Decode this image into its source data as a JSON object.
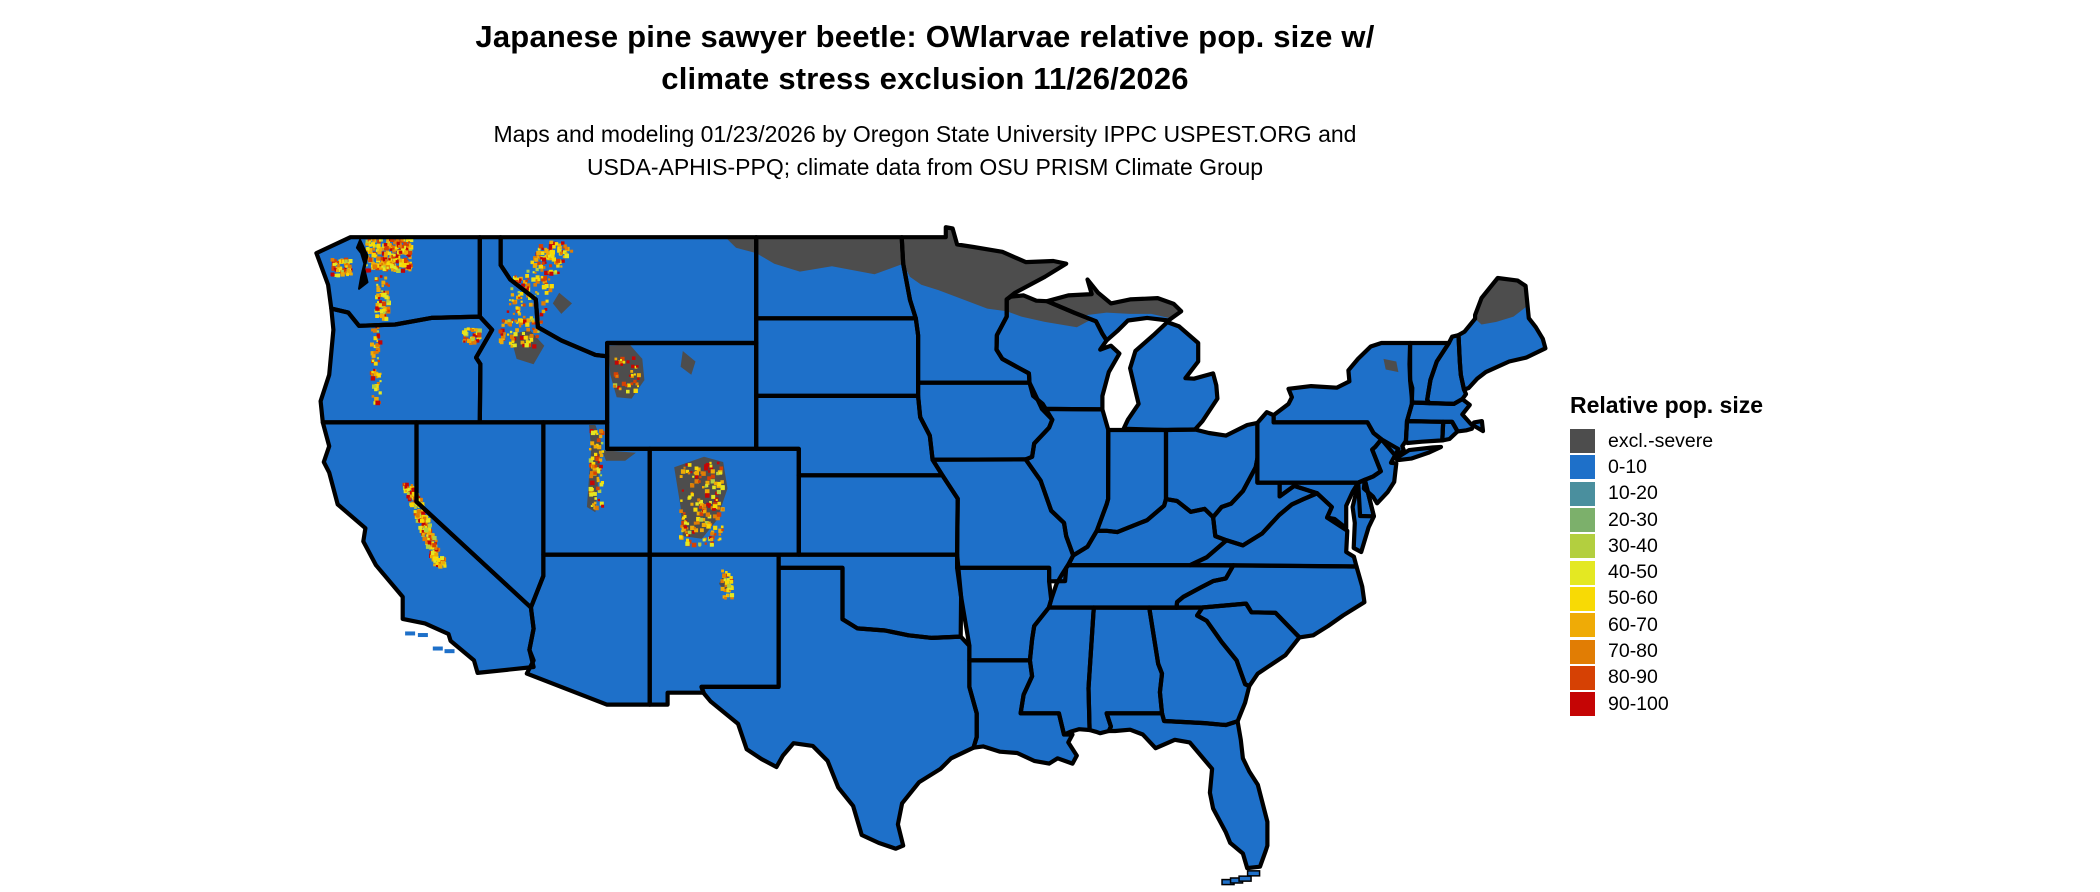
{
  "title": {
    "lines": [
      "Japanese pine sawyer beetle: OWlarvae relative pop. size w/",
      "climate stress exclusion 11/26/2026"
    ]
  },
  "subtitle": {
    "lines": [
      "Maps and modeling 01/23/2026 by Oregon State University IPPC USPEST.ORG and",
      "USDA-APHIS-PPQ; climate data from OSU PRISM Climate Group"
    ]
  },
  "legend": {
    "title": "Relative pop. size",
    "entries": [
      {
        "label": "excl.-severe",
        "color": "#4d4d4d"
      },
      {
        "label": "0-10",
        "color": "#1e70c9"
      },
      {
        "label": "10-20",
        "color": "#4a8f9e"
      },
      {
        "label": "20-30",
        "color": "#7cb06b"
      },
      {
        "label": "30-40",
        "color": "#b3cf3f"
      },
      {
        "label": "40-50",
        "color": "#e4e822"
      },
      {
        "label": "50-60",
        "color": "#f8da05"
      },
      {
        "label": "60-70",
        "color": "#efab06"
      },
      {
        "label": "70-80",
        "color": "#e17d04"
      },
      {
        "label": "80-90",
        "color": "#d64104"
      },
      {
        "label": "90-100",
        "color": "#c50505"
      }
    ]
  },
  "chart_data": {
    "type": "choropleth_map",
    "region_shown": "Continental United States (lower 48 states)",
    "map_date": "11/26/2026",
    "model_date": "01/23/2026",
    "default_class": "0-10",
    "coastline_color": "#000000",
    "water_color": "#ffffff",
    "excluded_zones": [
      {
        "id": "nd_north",
        "label": "Northern North Dakota",
        "class": "excl.-severe"
      },
      {
        "id": "mt_ne",
        "label": "Northeast Montana border",
        "class": "excl.-severe"
      },
      {
        "id": "mn_north",
        "label": "Northern Minnesota",
        "class": "excl.-severe"
      },
      {
        "id": "wi_north",
        "label": "Northern Wisconsin",
        "class": "excl.-severe"
      },
      {
        "id": "mi_up",
        "label": "Michigan Upper Peninsula",
        "class": "excl.-severe"
      },
      {
        "id": "me_north",
        "label": "Northern Maine",
        "class": "excl.-severe"
      },
      {
        "id": "adirondacks",
        "label": "Adirondacks NY",
        "class": "excl.-severe"
      },
      {
        "id": "wy_yellowstone",
        "label": "Yellowstone / NW Wyoming",
        "class": "excl.-severe"
      },
      {
        "id": "wy_bighorn",
        "label": "Bighorn Mountains WY",
        "class": "excl.-severe"
      },
      {
        "id": "ut_uinta",
        "label": "Uinta Mountains UT",
        "class": "excl.-severe"
      },
      {
        "id": "ut_wasatch",
        "label": "Wasatch Plateau UT",
        "class": "excl.-severe"
      },
      {
        "id": "co_rockies",
        "label": "Colorado Rockies",
        "class": "excl.-severe"
      },
      {
        "id": "id_central",
        "label": "Central Idaho Mountains",
        "class": "excl.-severe"
      },
      {
        "id": "mt_west",
        "label": "Western Montana Rockies",
        "class": "excl.-severe"
      },
      {
        "id": "nm_sangre",
        "label": "Sangre de Cristo NM",
        "class": "excl.-severe"
      }
    ],
    "hotspots": [
      {
        "id": "wa_n_cascades",
        "label": "North Cascades WA",
        "lon": -121.3,
        "lat": 48.35,
        "dlon": 1.05,
        "dlat": 0.62,
        "tilt": 0,
        "count": 230
      },
      {
        "id": "wa_olympics",
        "label": "Olympic Mountains WA",
        "lon": -123.5,
        "lat": 47.85,
        "dlon": 0.45,
        "dlat": 0.3,
        "tilt": 0,
        "count": 60
      },
      {
        "id": "wa_s_cascades",
        "label": "South Cascades WA",
        "lon": -121.6,
        "lat": 46.7,
        "dlon": 0.3,
        "dlat": 0.85,
        "tilt": 0,
        "count": 55
      },
      {
        "id": "or_cascades",
        "label": "Oregon Cascades",
        "lon": -121.9,
        "lat": 44.2,
        "dlon": 0.22,
        "dlat": 1.5,
        "tilt": 0,
        "count": 60
      },
      {
        "id": "or_wallowa",
        "label": "Wallowa Mountains OR",
        "lon": -117.4,
        "lat": 45.25,
        "dlon": 0.4,
        "dlat": 0.3,
        "tilt": 0,
        "count": 40
      },
      {
        "id": "id_bitterroot",
        "label": "Bitterroot Range ID/MT",
        "lon": -114.9,
        "lat": 46.2,
        "dlon": 0.95,
        "dlat": 1.35,
        "tilt": 0.5,
        "count": 150
      },
      {
        "id": "mt_glacier",
        "label": "NW Montana Rockies",
        "lon": -113.7,
        "lat": 48.2,
        "dlon": 0.8,
        "dlat": 0.6,
        "tilt": 0.4,
        "count": 90
      },
      {
        "id": "ca_sierra",
        "label": "Sierra Nevada CA",
        "lon": -119.6,
        "lat": 38.1,
        "dlon": 0.28,
        "dlat": 1.55,
        "tilt": -0.75,
        "count": 210
      },
      {
        "id": "ut_wasatch_h",
        "label": "Wasatch Front UT",
        "lon": -111.55,
        "lat": 40.2,
        "dlon": 0.3,
        "dlat": 1.5,
        "tilt": 0,
        "count": 70
      },
      {
        "id": "co_rockies_h",
        "label": "Colorado Rockies",
        "lon": -106.6,
        "lat": 38.9,
        "dlon": 1.0,
        "dlat": 1.6,
        "tilt": 0,
        "count": 160
      },
      {
        "id": "wy_absaroka",
        "label": "Absaroka Range WY",
        "lon": -110.1,
        "lat": 43.8,
        "dlon": 0.6,
        "dlat": 0.7,
        "tilt": 0,
        "count": 35
      },
      {
        "id": "nm_sangre_h",
        "label": "Sangre de Cristo NM",
        "lon": -105.4,
        "lat": 35.9,
        "dlon": 0.25,
        "dlat": 0.55,
        "tilt": 0,
        "count": 30
      }
    ],
    "hotspot_classes": [
      "30-40",
      "40-50",
      "50-60",
      "60-70",
      "70-80",
      "80-90",
      "90-100"
    ],
    "legend_position": "right"
  }
}
